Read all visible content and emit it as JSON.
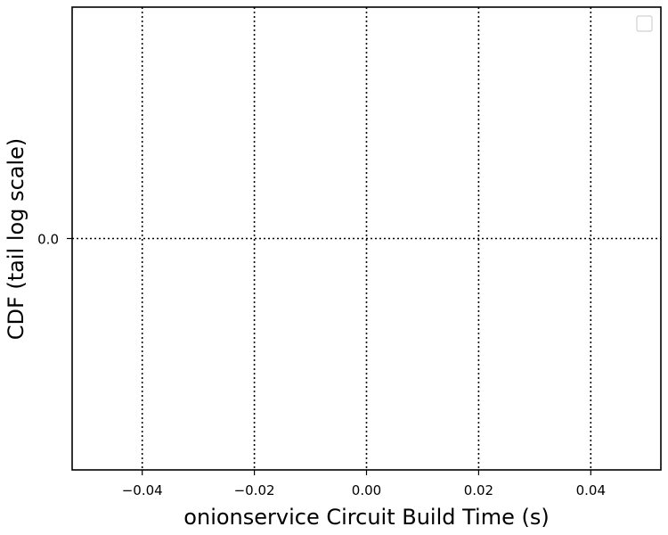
{
  "chart_data": {
    "type": "line",
    "title": "",
    "xlabel": "onionservice Circuit Build Time (s)",
    "ylabel": "CDF (tail log scale)",
    "xlim": [
      -0.0525,
      0.0525
    ],
    "ylim": [
      -0.05,
      0.05
    ],
    "x_ticks": [
      -0.04,
      -0.02,
      0.0,
      0.02,
      0.04
    ],
    "x_tick_labels": [
      "−0.04",
      "−0.02",
      "0.00",
      "0.02",
      "0.04"
    ],
    "y_ticks": [
      0.0
    ],
    "y_tick_labels": [
      "0.0"
    ],
    "grid": true,
    "grid_style": "dotted",
    "legend": {
      "placement": "top-right",
      "entries": []
    },
    "series": []
  }
}
